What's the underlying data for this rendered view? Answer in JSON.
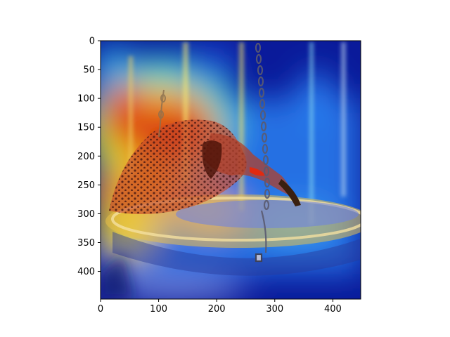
{
  "chart_data": {
    "type": "heatmap",
    "title": "",
    "xlabel": "",
    "ylabel": "",
    "xlim": [
      0,
      448
    ],
    "ylim": [
      448,
      0
    ],
    "x_ticks": [
      0,
      100,
      200,
      300,
      400
    ],
    "y_ticks": [
      0,
      50,
      100,
      150,
      200,
      250,
      300,
      350,
      400
    ],
    "colormap": "jet",
    "overlay": "attention heatmap over photo of a northern flicker (spotted woodpecker) drinking from a hanging bird bath on chains",
    "hotspots": [
      {
        "x": 270,
        "y": 210,
        "level": 1.0
      },
      {
        "x": 180,
        "y": 170,
        "level": 0.95
      },
      {
        "x": 60,
        "y": 210,
        "level": 0.9
      },
      {
        "x": 160,
        "y": 120,
        "level": 0.85
      },
      {
        "x": 100,
        "y": 280,
        "level": 0.85
      },
      {
        "x": 250,
        "y": 270,
        "level": 0.8
      },
      {
        "x": 60,
        "y": 350,
        "level": 0.7
      },
      {
        "x": 300,
        "y": 360,
        "level": 0.55
      },
      {
        "x": 380,
        "y": 120,
        "level": 0.5
      }
    ]
  }
}
